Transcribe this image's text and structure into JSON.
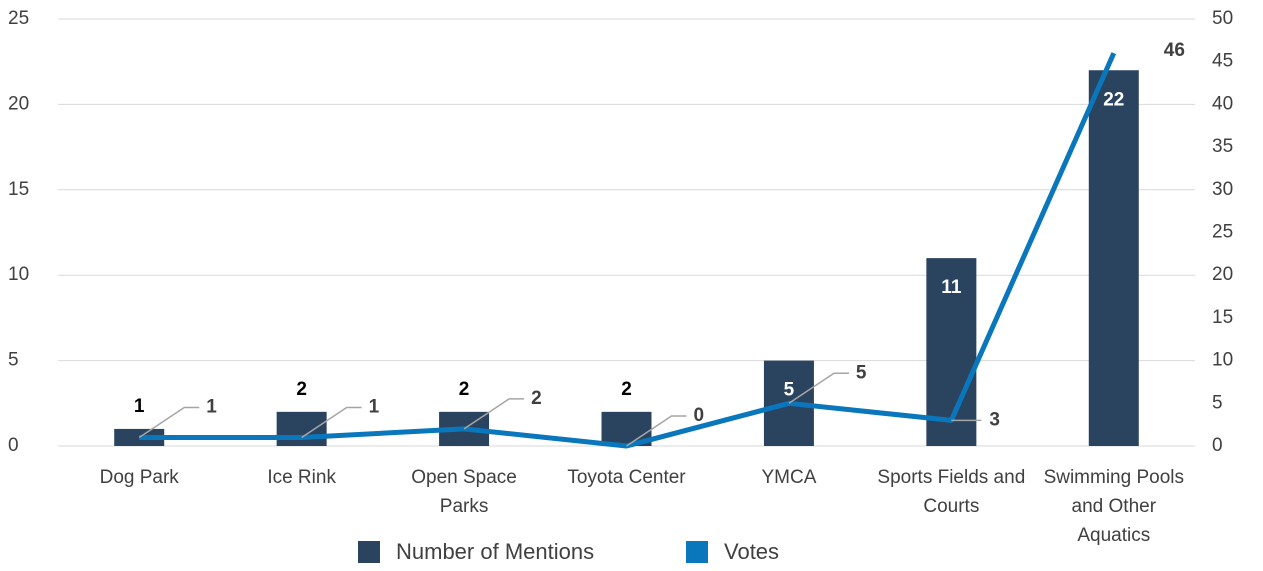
{
  "chart_data": {
    "type": "bar",
    "categories": [
      "Dog Park",
      "Ice Rink",
      "Open Space Parks",
      "Toyota Center",
      "YMCA",
      "Sports Fields and Courts",
      "Swimming Pools and Other Aquatics"
    ],
    "series": [
      {
        "name": "Number of Mentions",
        "type": "bar",
        "color": "#2a4460",
        "values": [
          1,
          2,
          2,
          2,
          5,
          11,
          22
        ]
      },
      {
        "name": "Votes",
        "type": "line",
        "axis": "y2",
        "color": "#0a77bd",
        "values": [
          1,
          1,
          2,
          0,
          5,
          3,
          46
        ]
      }
    ],
    "ylim": [
      0,
      25
    ],
    "yticks": [
      0,
      5,
      10,
      15,
      20,
      25
    ],
    "y2lim": [
      0,
      50
    ],
    "y2ticks": [
      0,
      5,
      10,
      15,
      20,
      25,
      30,
      35,
      40,
      45,
      50
    ],
    "grid": true,
    "legend": "bottom"
  }
}
